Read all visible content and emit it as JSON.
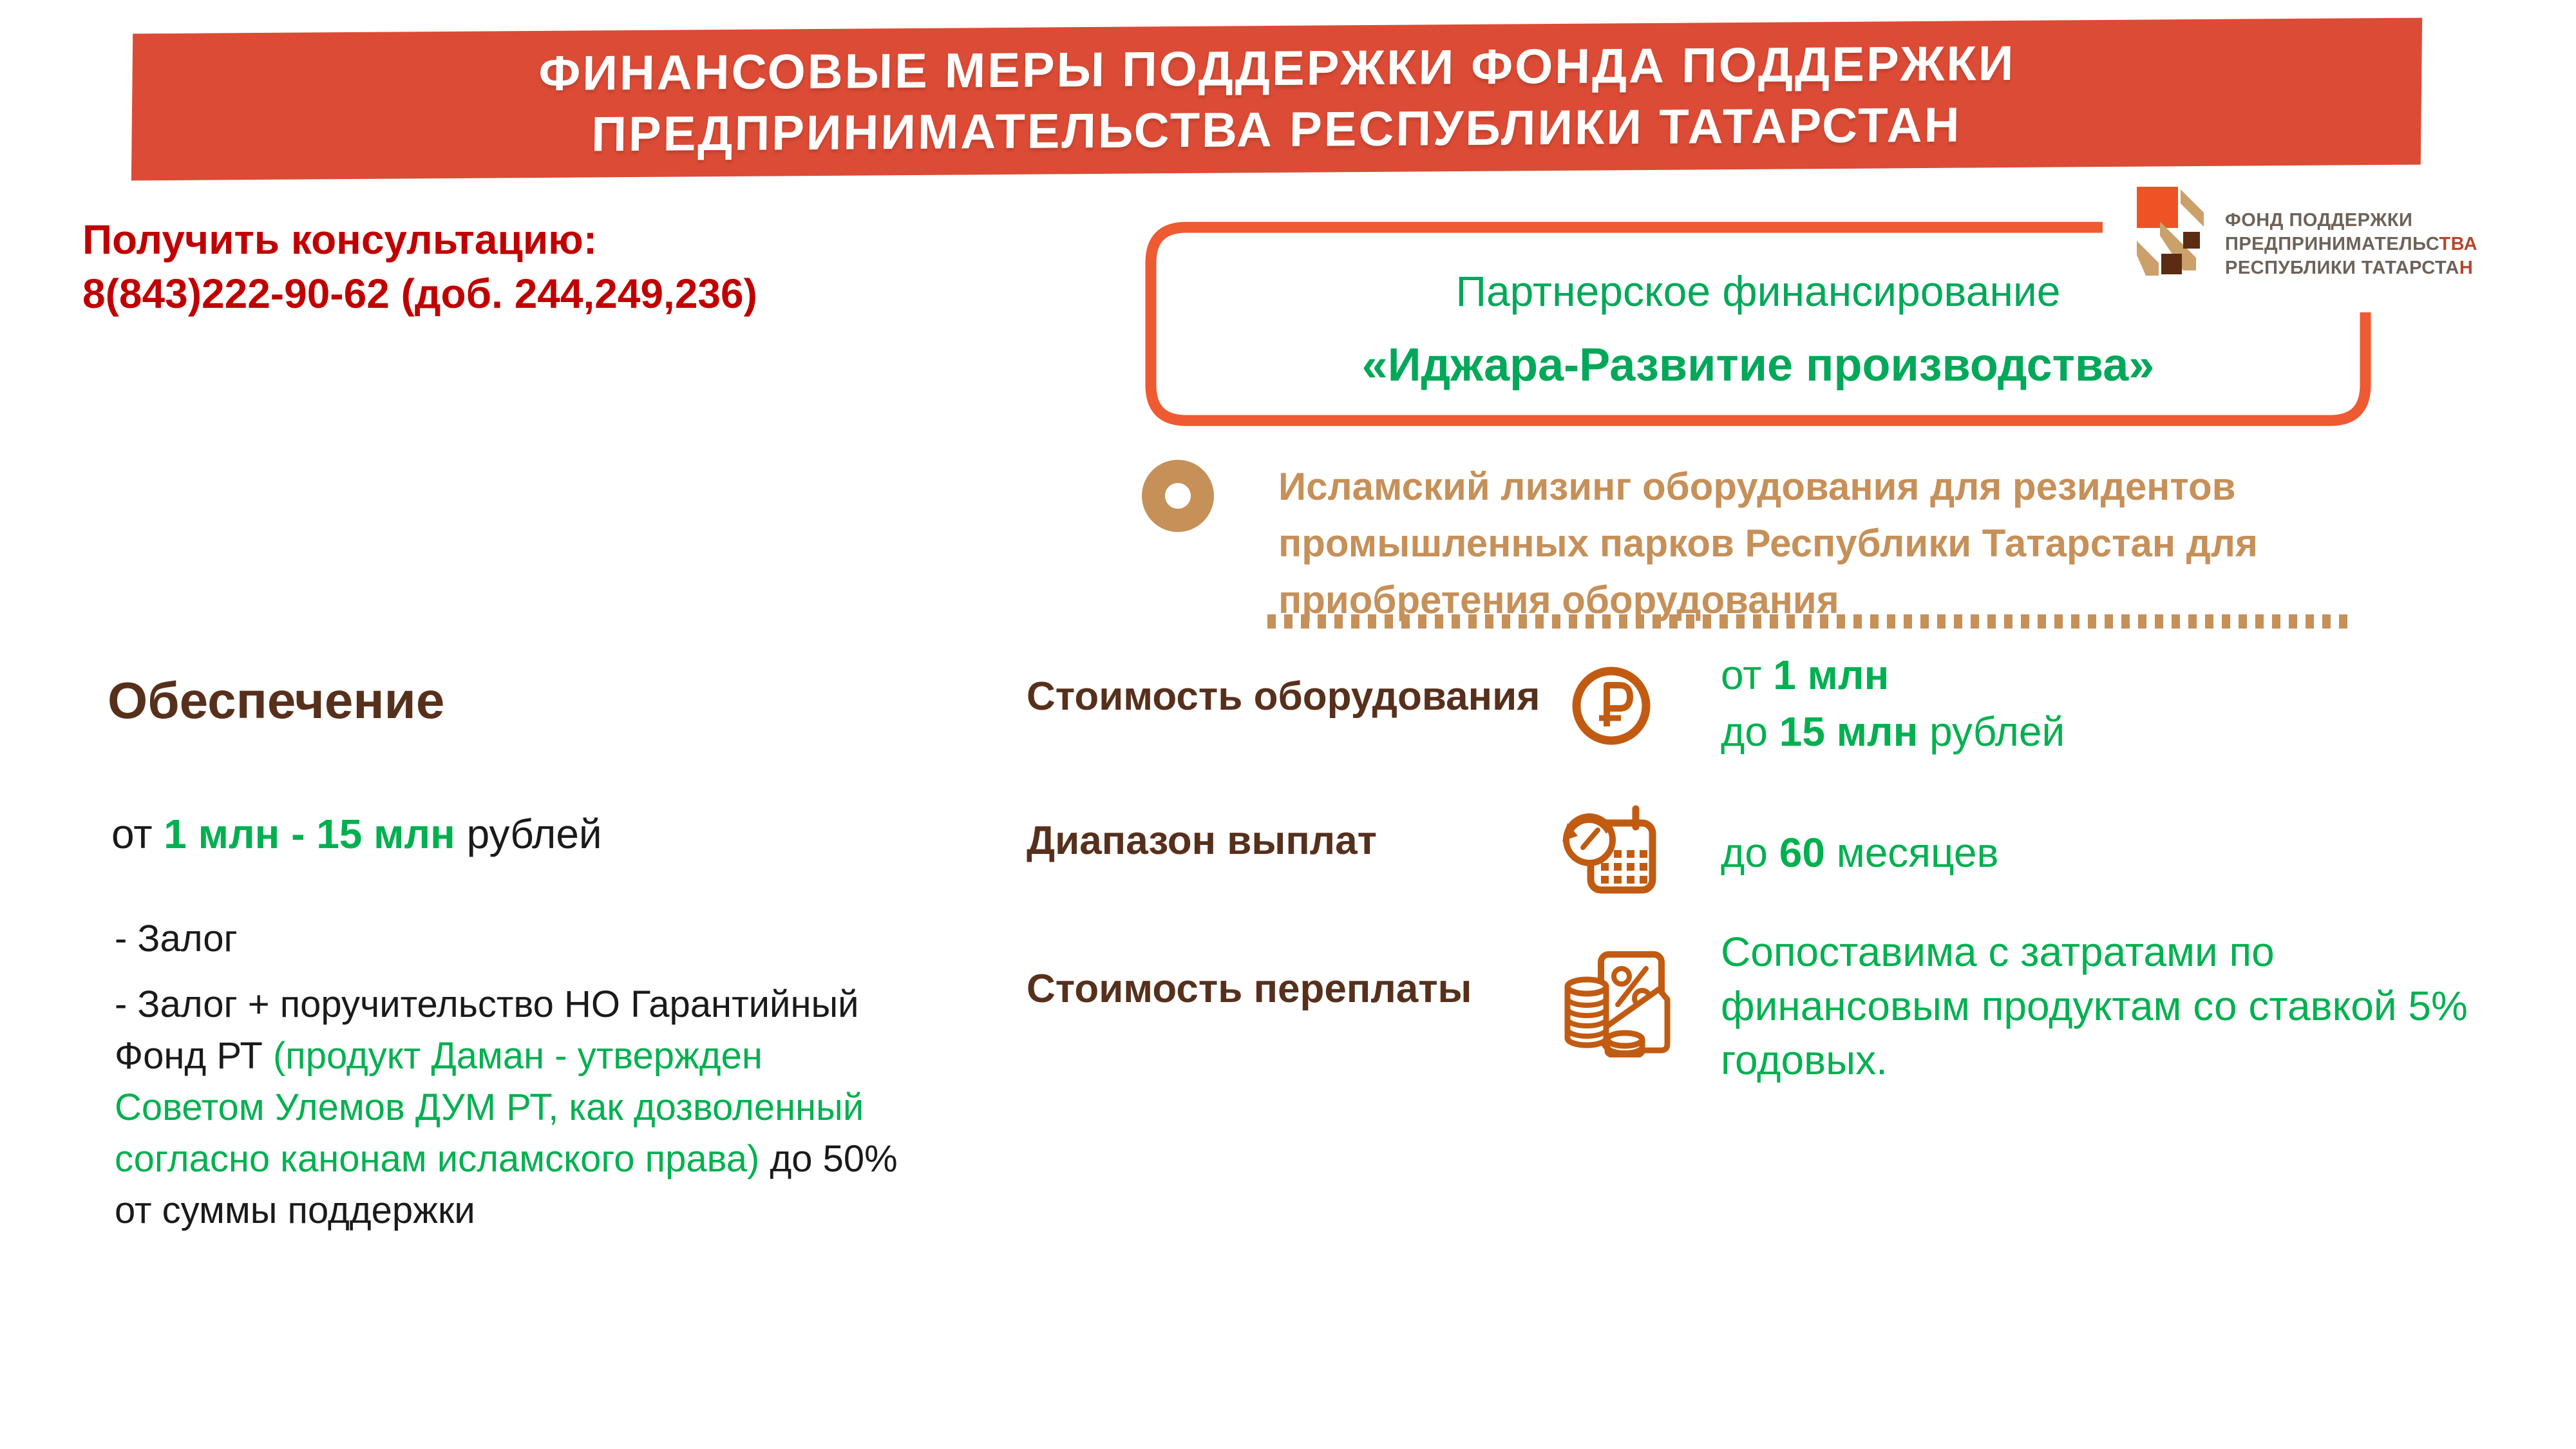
{
  "slide": {
    "background": "#FFFFFF"
  },
  "banner": {
    "line1": "ФИНАНСОВЫЕ МЕРЫ ПОДДЕРЖКИ ФОНДА ПОДДЕРЖКИ",
    "line2": "ПРЕДПРИНИМАТЕЛЬСТВА РЕСПУБЛИКИ ТАТАРСТАН",
    "bg_color": "#DC4B35",
    "text_color": "#FFFFFF"
  },
  "consultation": {
    "title": "Получить консультацию:",
    "phone": "8(843)222-90-62 (доб. 244,249,236)",
    "color": "#C00000"
  },
  "program_box": {
    "title": "Партнерское финансирование",
    "subtitle": "«Иджара-Развитие производства»",
    "border_color": "#EE5A31",
    "text_color": "#00A859"
  },
  "logo": {
    "mark_colors": {
      "orange": "#F05323",
      "tan": "#CBA06A",
      "brown": "#5B2C12"
    },
    "text_color": "#6E6259",
    "accent_color": "#B5472F",
    "lines": [
      [
        {
          "t": "ФОНД ПОДДЕРЖКИ"
        }
      ],
      [
        {
          "t": "ПРЕДПРИНИМАТЕЛЬС"
        },
        {
          "t": "ТВА",
          "s": "accent"
        }
      ],
      [
        {
          "t": "РЕСПУБЛИКИ ТАТАРСТА"
        },
        {
          "t": "Н",
          "s": "accent"
        }
      ]
    ]
  },
  "description": {
    "color": "#C69059",
    "lines": [
      "Исламский лизинг оборудования для резидентов",
      "промышленных парков Республики Татарстан для",
      "приобретения оборудования"
    ]
  },
  "security": {
    "heading": "Обеспечение",
    "heading_color": "#57301C",
    "amount": [
      {
        "t": "от "
      },
      {
        "t": "1 млн - 15 млн",
        "s": "green bold"
      },
      {
        "t": " рублей"
      }
    ],
    "lines": [
      [
        {
          "t": "- Залог"
        }
      ],
      [
        {
          "t": "- Залог + поручительство НО Гарантийный"
        }
      ],
      [
        {
          "t": "Фонд РТ "
        },
        {
          "t": "(продукт Даман - утвержден",
          "s": "green"
        }
      ],
      [
        {
          "t": "Советом Улемов ДУМ РТ, как дозволенный",
          "s": "green"
        }
      ],
      [
        {
          "t": "согласно канонам исламского права)",
          "s": "green"
        },
        {
          "t": " до 50%"
        }
      ],
      [
        {
          "t": "от суммы поддержки"
        }
      ]
    ]
  },
  "details": {
    "label_color": "#57301C",
    "value_color": "#00B050",
    "icon_color": "#C25B12",
    "rows": [
      {
        "label": "Стоимость оборудования",
        "icon": "ruble-coin-icon",
        "value_lines": [
          [
            {
              "t": "от "
            },
            {
              "t": "1 млн",
              "s": "bold"
            }
          ],
          [
            {
              "t": "до "
            },
            {
              "t": "15 млн",
              "s": "bold"
            },
            {
              "t": " рублей"
            }
          ]
        ]
      },
      {
        "label": "Диапазон выплат",
        "icon": "calendar-clock-icon",
        "value_lines": [
          [
            {
              "t": "до "
            },
            {
              "t": "60",
              "s": "bold"
            },
            {
              "t": " месяцев"
            }
          ]
        ]
      },
      {
        "label": "Стоимость переплаты",
        "icon": "coins-percent-envelope-icon",
        "value_lines": [
          [
            {
              "t": "Сопоставима с затратами по"
            }
          ],
          [
            {
              "t": "финансовым продуктам со ставкой 5%"
            }
          ],
          [
            {
              "t": "годовых."
            }
          ]
        ]
      }
    ]
  }
}
